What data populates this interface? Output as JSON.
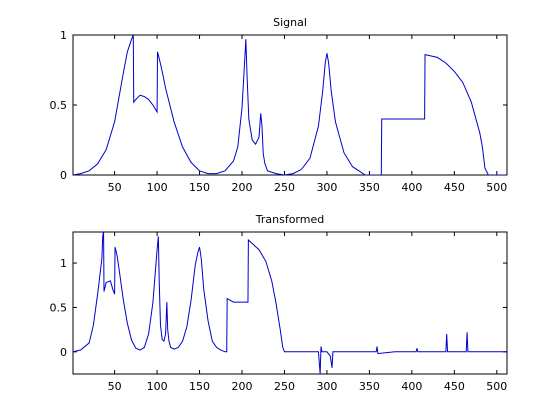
{
  "chart_data": [
    {
      "type": "line",
      "title": "Signal",
      "xlabel": "",
      "ylabel": "",
      "xlim": [
        1,
        512
      ],
      "ylim": [
        0,
        1
      ],
      "xticks": [
        50,
        100,
        150,
        200,
        250,
        300,
        350,
        400,
        450,
        500
      ],
      "yticks": [
        0,
        0.5,
        1
      ],
      "ytick_labels": [
        "0",
        "0.5",
        "1"
      ],
      "grid": false,
      "color": "#0000cc",
      "series": [
        {
          "x": [
            1,
            10,
            20,
            30,
            40,
            50,
            55,
            60,
            65,
            70,
            72,
            72.5,
            75,
            80,
            85,
            90,
            95,
            100,
            100.5,
            103,
            106,
            110,
            120,
            130,
            140,
            150,
            160,
            170,
            180,
            190,
            195,
            200,
            203,
            204.5,
            206,
            208,
            212,
            216,
            220,
            222,
            223.5,
            225,
            227,
            230,
            240,
            250,
            260,
            270,
            280,
            290,
            295,
            298,
            300,
            302,
            305,
            310,
            320,
            330,
            340,
            345,
            350,
            355,
            360,
            364,
            364.5,
            400,
            415,
            415.5,
            430,
            440,
            450,
            460,
            470,
            480,
            483,
            486,
            490,
            512
          ],
          "y": [
            0.0,
            0.01,
            0.03,
            0.08,
            0.18,
            0.38,
            0.55,
            0.72,
            0.88,
            0.97,
            1.0,
            0.52,
            0.54,
            0.57,
            0.56,
            0.54,
            0.5,
            0.45,
            0.88,
            0.82,
            0.74,
            0.62,
            0.38,
            0.2,
            0.09,
            0.03,
            0.01,
            0.01,
            0.03,
            0.1,
            0.2,
            0.48,
            0.8,
            0.97,
            0.7,
            0.4,
            0.25,
            0.22,
            0.27,
            0.44,
            0.35,
            0.15,
            0.08,
            0.03,
            0.01,
            0.0,
            0.01,
            0.04,
            0.12,
            0.35,
            0.6,
            0.8,
            0.87,
            0.8,
            0.6,
            0.38,
            0.16,
            0.06,
            0.02,
            0.0,
            0.0,
            0.0,
            0.0,
            0.0,
            0.4,
            0.4,
            0.4,
            0.86,
            0.84,
            0.8,
            0.74,
            0.66,
            0.52,
            0.3,
            0.2,
            0.05,
            0.0,
            0.0
          ]
        }
      ]
    },
    {
      "type": "line",
      "title": "Transformed",
      "xlabel": "",
      "ylabel": "",
      "xlim": [
        1,
        512
      ],
      "ylim": [
        -0.25,
        1.35
      ],
      "xticks": [
        50,
        100,
        150,
        200,
        250,
        300,
        350,
        400,
        450,
        500
      ],
      "yticks": [
        0,
        0.5,
        1
      ],
      "ytick_labels": [
        "0",
        "0.5",
        "1"
      ],
      "grid": false,
      "color": "#0000cc",
      "series": [
        {
          "x": [
            1,
            10,
            20,
            25,
            30,
            35,
            36,
            37,
            37.5,
            40,
            45,
            48,
            50,
            50.5,
            53,
            56,
            60,
            65,
            70,
            75,
            80,
            85,
            90,
            95,
            100,
            101.5,
            102.5,
            104,
            106,
            108,
            110,
            111.5,
            112.5,
            114,
            116,
            120,
            125,
            130,
            135,
            140,
            145,
            148,
            150,
            152,
            155,
            160,
            165,
            170,
            175,
            180,
            182,
            182.5,
            190,
            200,
            207,
            207.5,
            212,
            220,
            228,
            235,
            240,
            245,
            248,
            250,
            260,
            280,
            290,
            292,
            293,
            294,
            300,
            304,
            306,
            307,
            310,
            340,
            358,
            359,
            360,
            380,
            400,
            405,
            406,
            407,
            420,
            440,
            441,
            442,
            460,
            464,
            465,
            466,
            480,
            495,
            500,
            512
          ],
          "y": [
            0.0,
            0.02,
            0.1,
            0.3,
            0.65,
            1.05,
            1.3,
            1.36,
            0.68,
            0.78,
            0.8,
            0.7,
            0.65,
            1.18,
            1.08,
            0.88,
            0.6,
            0.32,
            0.13,
            0.04,
            0.02,
            0.05,
            0.2,
            0.55,
            1.15,
            1.3,
            0.8,
            0.3,
            0.14,
            0.12,
            0.2,
            0.56,
            0.25,
            0.12,
            0.05,
            0.03,
            0.05,
            0.12,
            0.28,
            0.58,
            0.98,
            1.12,
            1.18,
            1.05,
            0.7,
            0.35,
            0.12,
            0.05,
            0.02,
            0.0,
            0.0,
            0.6,
            0.56,
            0.56,
            0.56,
            1.26,
            1.22,
            1.15,
            1.02,
            0.8,
            0.55,
            0.25,
            0.05,
            0.0,
            0.0,
            0.0,
            0.0,
            -0.25,
            0.06,
            0.0,
            0.0,
            -0.05,
            -0.18,
            0.0,
            0.0,
            0.0,
            0.0,
            0.06,
            -0.02,
            0.0,
            0.0,
            0.0,
            0.04,
            0.0,
            0.0,
            0.0,
            0.2,
            0.0,
            0.0,
            0.0,
            0.22,
            0.0,
            0.0,
            0.0,
            0.0,
            0.0
          ]
        }
      ]
    }
  ]
}
